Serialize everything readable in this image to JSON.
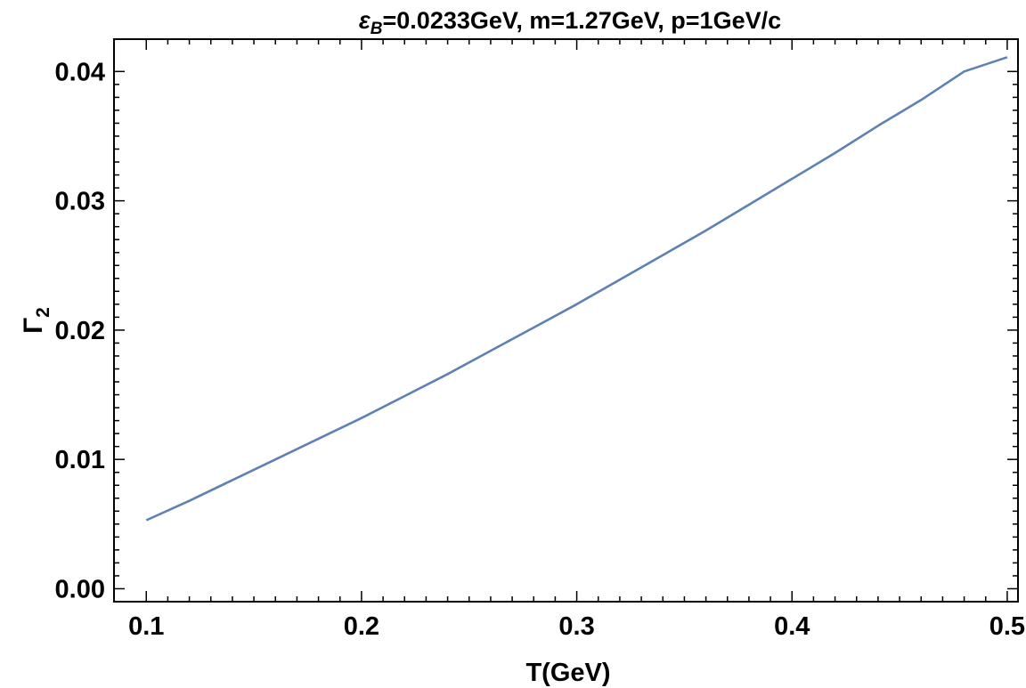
{
  "chart_data": {
    "type": "line",
    "title_parts": {
      "symbol": "ε",
      "subscript": "B",
      "rest": "=0.0233GeV, m=1.27GeV, p=1GeV/c"
    },
    "xlabel": "T(GeV)",
    "ylabel_parts": {
      "symbol": "Γ",
      "subscript": "2"
    },
    "xlim": [
      0.085,
      0.505
    ],
    "ylim": [
      -0.001,
      0.0425
    ],
    "x_ticks": [
      "0.1",
      "0.2",
      "0.3",
      "0.4",
      "0.5"
    ],
    "y_ticks": [
      "0.00",
      "0.01",
      "0.02",
      "0.03",
      "0.04"
    ],
    "grid": false,
    "line_color": "#5e81b5",
    "series": [
      {
        "x": [
          0.1,
          0.12,
          0.14,
          0.16,
          0.18,
          0.2,
          0.22,
          0.24,
          0.26,
          0.28,
          0.3,
          0.32,
          0.34,
          0.36,
          0.38,
          0.4,
          0.42,
          0.44,
          0.46,
          0.48,
          0.5
        ],
        "y": [
          0.0053,
          0.0068,
          0.0084,
          0.01,
          0.0116,
          0.0132,
          0.0149,
          0.0166,
          0.0184,
          0.0202,
          0.022,
          0.0239,
          0.0258,
          0.0277,
          0.0297,
          0.0317,
          0.0337,
          0.0358,
          0.0378,
          0.04,
          0.0411
        ]
      }
    ]
  }
}
